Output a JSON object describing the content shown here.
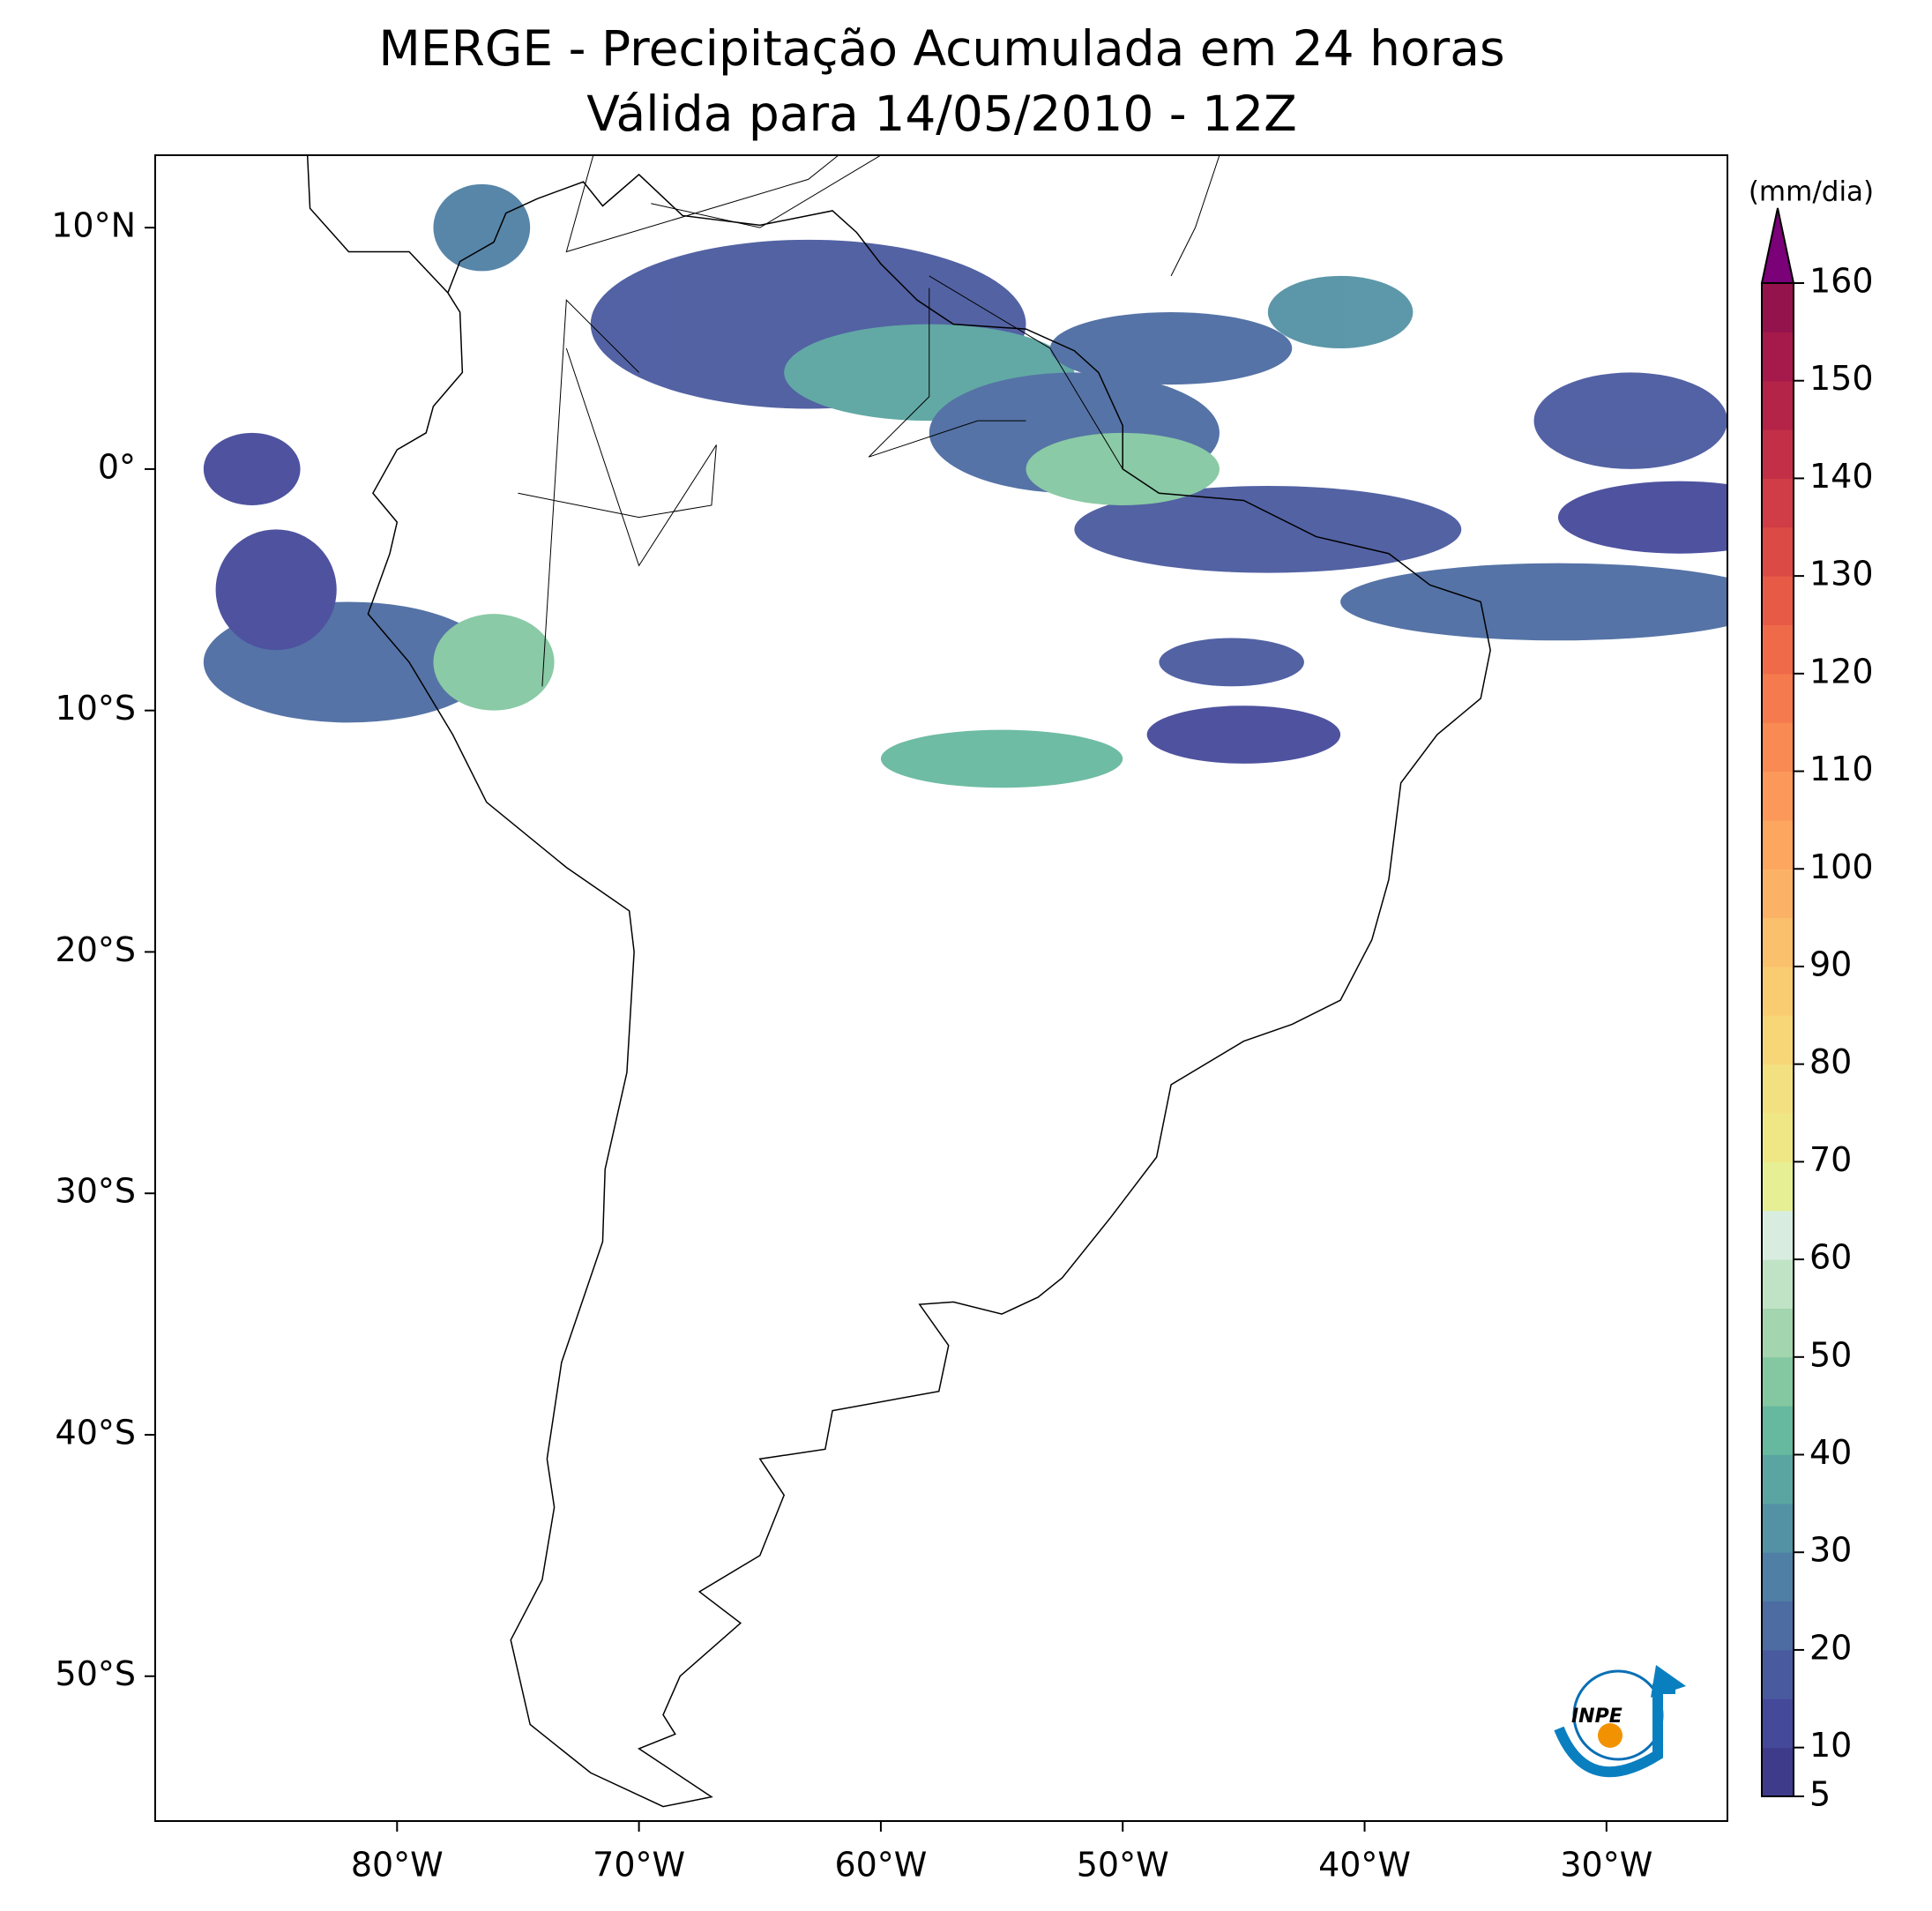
{
  "chart_data": {
    "type": "map",
    "title": "MERGE - Precipitação Acumulada em 24 horas",
    "subtitle": "Válida para 14/05/2010 - 12Z",
    "xlim": [
      -90,
      -25
    ],
    "ylim": [
      -56,
      13
    ],
    "xticks": [
      {
        "value": -80,
        "label": "80°W"
      },
      {
        "value": -70,
        "label": "70°W"
      },
      {
        "value": -60,
        "label": "60°W"
      },
      {
        "value": -50,
        "label": "50°W"
      },
      {
        "value": -40,
        "label": "40°W"
      },
      {
        "value": -30,
        "label": "30°W"
      }
    ],
    "yticks": [
      {
        "value": 10,
        "label": "10°N"
      },
      {
        "value": 0,
        "label": "0°"
      },
      {
        "value": -10,
        "label": "10°S"
      },
      {
        "value": -20,
        "label": "20°S"
      },
      {
        "value": -30,
        "label": "30°S"
      },
      {
        "value": -40,
        "label": "40°S"
      },
      {
        "value": -50,
        "label": "50°S"
      }
    ],
    "colorbar": {
      "label": "(mm/dia)",
      "lim": [
        5,
        160
      ],
      "ticks": [
        5,
        10,
        20,
        30,
        40,
        50,
        60,
        70,
        80,
        90,
        100,
        110,
        120,
        130,
        140,
        150,
        160
      ],
      "colors": [
        "#3f3b8b",
        "#45499a",
        "#4a5a9f",
        "#4c6ca2",
        "#4f7fa4",
        "#5392a4",
        "#5aa5a1",
        "#66b89e",
        "#84c8a2",
        "#a3d5ae",
        "#c0e3c6",
        "#d8ede0",
        "#e6ef94",
        "#efe785",
        "#f3e080",
        "#f7d678",
        "#f9cc72",
        "#fbc06b",
        "#fcb266",
        "#fca660",
        "#fb985a",
        "#f98a53",
        "#f57a4d",
        "#ef6a48",
        "#e75a46",
        "#dc4a45",
        "#d03d46",
        "#c32f47",
        "#b42348",
        "#a51a4a",
        "#95134c"
      ],
      "extend_color": "#7a0177"
    },
    "logo_text": "INPE"
  }
}
